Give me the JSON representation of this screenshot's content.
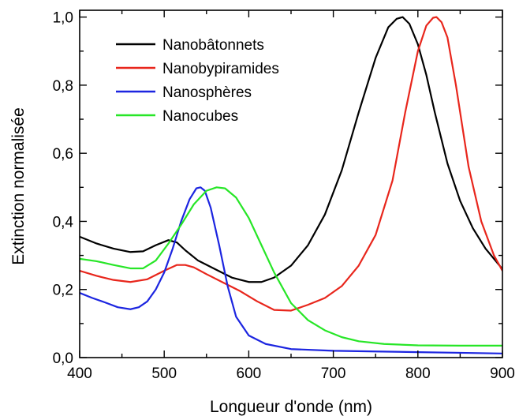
{
  "chart_data": {
    "type": "line",
    "xlabel": "Longueur d'onde (nm)",
    "ylabel": "Extinction normalisée",
    "xlim": [
      400,
      900
    ],
    "ylim": [
      0,
      1.02
    ],
    "xticks": [
      400,
      500,
      600,
      700,
      800,
      900
    ],
    "xtick_labels": [
      "400",
      "500",
      "600",
      "700",
      "800",
      "900"
    ],
    "yticks": [
      0,
      0.2,
      0.4,
      0.6,
      0.8,
      1.0
    ],
    "ytick_labels": [
      "0,0",
      "0,2",
      "0,4",
      "0,6",
      "0,8",
      "1,0"
    ],
    "grid": false,
    "legend_position": "top-left",
    "series": [
      {
        "name": "Nanobâtonnets",
        "color": "#000000",
        "x": [
          400,
          420,
          440,
          460,
          475,
          490,
          505,
          515,
          525,
          540,
          560,
          580,
          600,
          615,
          630,
          650,
          670,
          690,
          710,
          730,
          750,
          765,
          775,
          782,
          790,
          800,
          810,
          820,
          835,
          850,
          865,
          880,
          900
        ],
        "y": [
          0.355,
          0.335,
          0.32,
          0.31,
          0.312,
          0.33,
          0.345,
          0.338,
          0.315,
          0.285,
          0.26,
          0.235,
          0.222,
          0.222,
          0.235,
          0.27,
          0.33,
          0.42,
          0.55,
          0.72,
          0.88,
          0.97,
          0.995,
          1.0,
          0.98,
          0.92,
          0.83,
          0.72,
          0.57,
          0.46,
          0.38,
          0.32,
          0.26
        ]
      },
      {
        "name": "Nanobypiramides",
        "color": "#e8261c",
        "x": [
          400,
          420,
          440,
          460,
          480,
          500,
          515,
          525,
          535,
          550,
          570,
          590,
          610,
          630,
          650,
          670,
          690,
          710,
          730,
          750,
          770,
          785,
          800,
          810,
          818,
          822,
          828,
          835,
          845,
          860,
          875,
          890,
          900
        ],
        "y": [
          0.255,
          0.24,
          0.228,
          0.222,
          0.23,
          0.255,
          0.272,
          0.272,
          0.265,
          0.245,
          0.22,
          0.195,
          0.165,
          0.14,
          0.138,
          0.155,
          0.175,
          0.21,
          0.27,
          0.36,
          0.52,
          0.72,
          0.9,
          0.975,
          0.998,
          1.0,
          0.985,
          0.94,
          0.8,
          0.56,
          0.4,
          0.3,
          0.255
        ]
      },
      {
        "name": "Nanosphères",
        "color": "#1c25e0",
        "x": [
          400,
          415,
          430,
          445,
          460,
          470,
          480,
          490,
          500,
          510,
          520,
          530,
          538,
          543,
          548,
          555,
          565,
          575,
          585,
          600,
          620,
          650,
          700,
          750,
          800,
          850,
          900
        ],
        "y": [
          0.19,
          0.175,
          0.162,
          0.148,
          0.142,
          0.148,
          0.165,
          0.2,
          0.25,
          0.32,
          0.4,
          0.465,
          0.497,
          0.5,
          0.49,
          0.44,
          0.33,
          0.21,
          0.12,
          0.065,
          0.04,
          0.025,
          0.02,
          0.018,
          0.016,
          0.014,
          0.012
        ]
      },
      {
        "name": "Nanocubes",
        "color": "#27e627",
        "x": [
          400,
          420,
          440,
          460,
          475,
          490,
          505,
          520,
          535,
          550,
          562,
          572,
          585,
          600,
          615,
          630,
          650,
          670,
          690,
          710,
          730,
          760,
          800,
          850,
          900
        ],
        "y": [
          0.29,
          0.283,
          0.272,
          0.262,
          0.262,
          0.285,
          0.335,
          0.39,
          0.45,
          0.49,
          0.5,
          0.497,
          0.47,
          0.41,
          0.33,
          0.25,
          0.16,
          0.11,
          0.08,
          0.06,
          0.048,
          0.04,
          0.036,
          0.035,
          0.035
        ]
      }
    ]
  }
}
